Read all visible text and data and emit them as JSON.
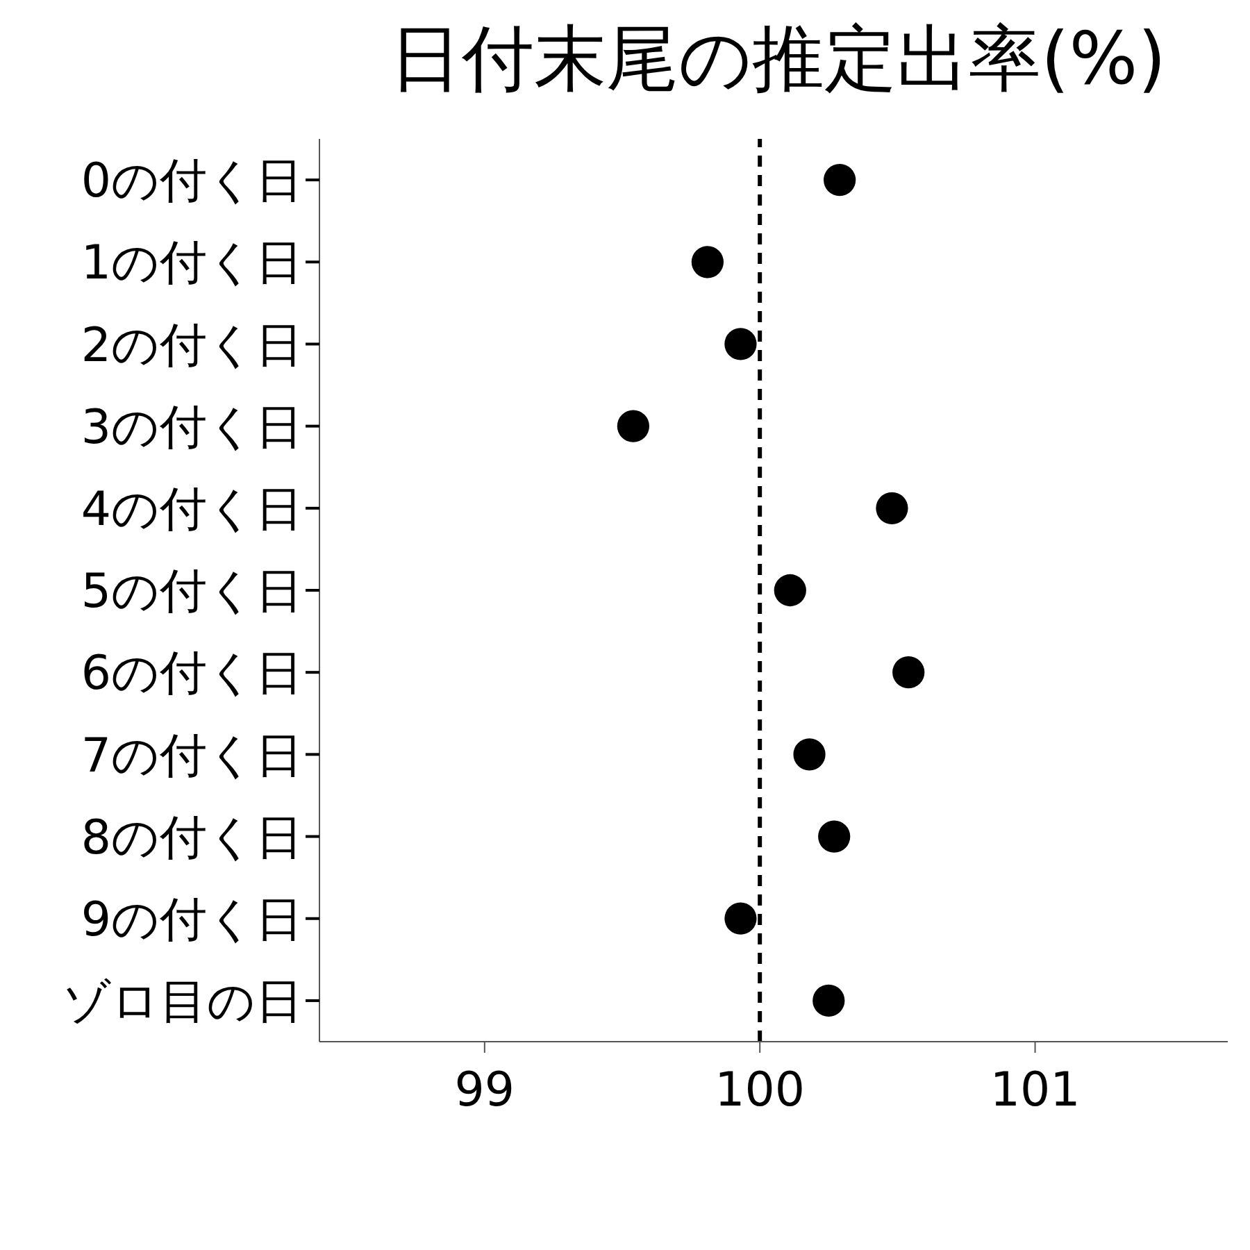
{
  "chart_data": {
    "type": "scatter",
    "orientation": "horizontal",
    "title": "日付末尾の推定出率(%)",
    "categories": [
      "0の付く日",
      "1の付く日",
      "2の付く日",
      "3の付く日",
      "4の付く日",
      "5の付く日",
      "6の付く日",
      "7の付く日",
      "8の付く日",
      "9の付く日",
      "ゾロ目の日"
    ],
    "values": [
      100.29,
      99.81,
      99.93,
      99.54,
      100.48,
      100.11,
      100.54,
      100.18,
      100.27,
      99.93,
      100.25
    ],
    "color": "#000000",
    "marker": "circle",
    "grid": false,
    "legend": false,
    "xlim": [
      98.4,
      101.7
    ],
    "xticks": [
      99,
      100,
      101
    ],
    "ref_lines": [
      {
        "axis": "x",
        "value": 100,
        "color": "#000000",
        "line_style": "dashed"
      }
    ]
  }
}
